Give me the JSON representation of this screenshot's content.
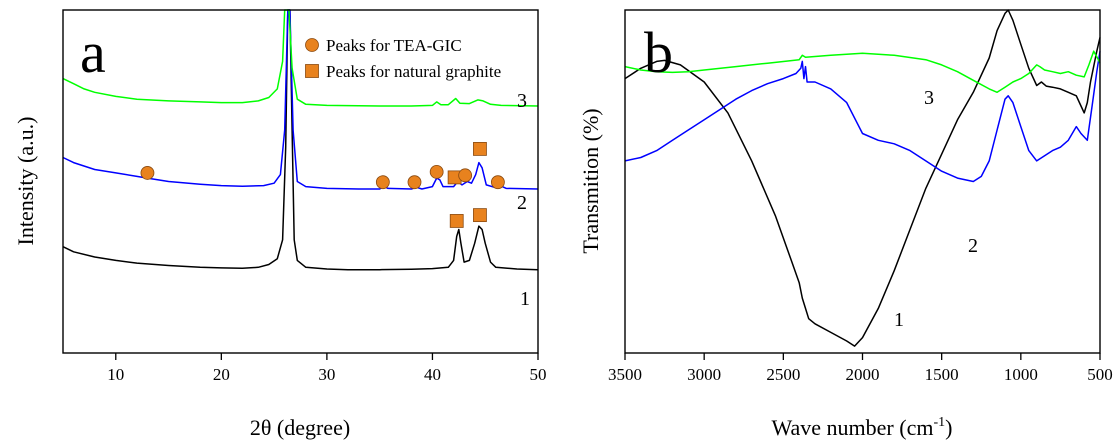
{
  "chart_data": [
    {
      "panel_letter": "a",
      "type": "line",
      "xlabel": "2θ (degree)",
      "ylabel": "Intensity (a.u.)",
      "xlim": [
        5,
        50
      ],
      "x_ticks": [
        10,
        20,
        30,
        40,
        50
      ],
      "y_ticks_shown": false,
      "grid": false,
      "legend": {
        "placement": "top-right",
        "entries": [
          {
            "marker": "circle",
            "label": "Peaks for TEA-GIC",
            "color": "#E8821E"
          },
          {
            "marker": "square",
            "label": "Peaks for natural graphite",
            "color": "#E8821E"
          }
        ]
      },
      "series": [
        {
          "label_on_chart": "1",
          "color": "#000000",
          "points": [
            [
              5,
              0.31
            ],
            [
              6,
              0.295
            ],
            [
              8,
              0.28
            ],
            [
              10,
              0.27
            ],
            [
              12,
              0.262
            ],
            [
              15,
              0.255
            ],
            [
              18,
              0.25
            ],
            [
              20,
              0.248
            ],
            [
              22,
              0.247
            ],
            [
              23.5,
              0.25
            ],
            [
              24.5,
              0.258
            ],
            [
              25.3,
              0.275
            ],
            [
              25.8,
              0.33
            ],
            [
              26.1,
              0.6
            ],
            [
              26.3,
              1.05
            ],
            [
              26.5,
              1.05
            ],
            [
              26.7,
              0.65
            ],
            [
              26.9,
              0.33
            ],
            [
              27.2,
              0.27
            ],
            [
              28,
              0.25
            ],
            [
              30,
              0.245
            ],
            [
              32,
              0.243
            ],
            [
              35,
              0.243
            ],
            [
              38,
              0.244
            ],
            [
              40,
              0.246
            ],
            [
              41.5,
              0.25
            ],
            [
              42.0,
              0.27
            ],
            [
              42.3,
              0.34
            ],
            [
              42.5,
              0.36
            ],
            [
              42.7,
              0.32
            ],
            [
              43.0,
              0.265
            ],
            [
              43.5,
              0.27
            ],
            [
              44.0,
              0.32
            ],
            [
              44.4,
              0.37
            ],
            [
              44.7,
              0.36
            ],
            [
              45.0,
              0.32
            ],
            [
              45.5,
              0.265
            ],
            [
              46,
              0.25
            ],
            [
              48,
              0.245
            ],
            [
              50,
              0.243
            ]
          ]
        },
        {
          "label_on_chart": "2",
          "color": "#0000FF",
          "points": [
            [
              5,
              0.57
            ],
            [
              6,
              0.555
            ],
            [
              8,
              0.535
            ],
            [
              10,
              0.525
            ],
            [
              12,
              0.515
            ],
            [
              13,
              0.51
            ],
            [
              15,
              0.5
            ],
            [
              18,
              0.492
            ],
            [
              20,
              0.488
            ],
            [
              22,
              0.486
            ],
            [
              24,
              0.488
            ],
            [
              25,
              0.495
            ],
            [
              25.6,
              0.52
            ],
            [
              26.0,
              0.65
            ],
            [
              26.3,
              1.05
            ],
            [
              26.5,
              1.05
            ],
            [
              26.8,
              0.65
            ],
            [
              27.2,
              0.5
            ],
            [
              28,
              0.485
            ],
            [
              30,
              0.48
            ],
            [
              33,
              0.478
            ],
            [
              35,
              0.478
            ],
            [
              35.4,
              0.485
            ],
            [
              35.8,
              0.48
            ],
            [
              38,
              0.478
            ],
            [
              38.5,
              0.483
            ],
            [
              39,
              0.478
            ],
            [
              40,
              0.485
            ],
            [
              40.4,
              0.51
            ],
            [
              40.7,
              0.505
            ],
            [
              41,
              0.485
            ],
            [
              42,
              0.485
            ],
            [
              42.4,
              0.5
            ],
            [
              42.8,
              0.49
            ],
            [
              43.3,
              0.5
            ],
            [
              43.7,
              0.495
            ],
            [
              44.1,
              0.52
            ],
            [
              44.4,
              0.555
            ],
            [
              44.7,
              0.54
            ],
            [
              45.1,
              0.49
            ],
            [
              46,
              0.482
            ],
            [
              46.4,
              0.488
            ],
            [
              47,
              0.48
            ],
            [
              50,
              0.478
            ]
          ]
        },
        {
          "label_on_chart": "3",
          "color": "#00FF00",
          "points": [
            [
              5,
              0.8
            ],
            [
              6,
              0.785
            ],
            [
              7,
              0.77
            ],
            [
              8,
              0.76
            ],
            [
              10,
              0.748
            ],
            [
              12,
              0.74
            ],
            [
              15,
              0.735
            ],
            [
              18,
              0.732
            ],
            [
              20,
              0.73
            ],
            [
              22,
              0.73
            ],
            [
              23.5,
              0.735
            ],
            [
              24.5,
              0.745
            ],
            [
              25.3,
              0.77
            ],
            [
              25.8,
              0.85
            ],
            [
              26.0,
              1.05
            ],
            [
              26.4,
              1.05
            ],
            [
              26.7,
              0.83
            ],
            [
              27.2,
              0.74
            ],
            [
              28,
              0.725
            ],
            [
              30,
              0.722
            ],
            [
              35,
              0.72
            ],
            [
              38,
              0.72
            ],
            [
              40,
              0.722
            ],
            [
              40.4,
              0.732
            ],
            [
              40.8,
              0.724
            ],
            [
              41.5,
              0.724
            ],
            [
              42.2,
              0.742
            ],
            [
              42.6,
              0.728
            ],
            [
              43.5,
              0.727
            ],
            [
              44.3,
              0.738
            ],
            [
              44.8,
              0.735
            ],
            [
              45.5,
              0.725
            ],
            [
              46.5,
              0.722
            ],
            [
              50,
              0.72
            ]
          ]
        }
      ],
      "markers": [
        {
          "shape": "circle",
          "x": 13,
          "y": 0.525
        },
        {
          "shape": "circle",
          "x": 35.3,
          "y": 0.498
        },
        {
          "shape": "circle",
          "x": 38.3,
          "y": 0.498
        },
        {
          "shape": "circle",
          "x": 40.4,
          "y": 0.528
        },
        {
          "shape": "square",
          "x": 42.1,
          "y": 0.512
        },
        {
          "shape": "circle",
          "x": 43.1,
          "y": 0.518
        },
        {
          "shape": "square",
          "x": 44.5,
          "y": 0.595
        },
        {
          "shape": "circle",
          "x": 46.2,
          "y": 0.498
        },
        {
          "shape": "square",
          "x": 42.3,
          "y": 0.385
        },
        {
          "shape": "square",
          "x": 44.5,
          "y": 0.402
        }
      ]
    },
    {
      "panel_letter": "b",
      "type": "line",
      "xlabel": "Wave number (cm",
      "xlabel_superscript": "-1",
      "xlabel_close": ")",
      "ylabel": "Transmition (%)",
      "xlim": [
        3500,
        500
      ],
      "x_reversed": true,
      "x_ticks": [
        3500,
        3000,
        2500,
        2000,
        1500,
        1000,
        500
      ],
      "y_ticks_shown": false,
      "grid": false,
      "series": [
        {
          "label_on_chart": "1",
          "color": "#000000",
          "points": [
            [
              3500,
              0.8
            ],
            [
              3400,
              0.83
            ],
            [
              3300,
              0.85
            ],
            [
              3250,
              0.853
            ],
            [
              3150,
              0.84
            ],
            [
              3000,
              0.79
            ],
            [
              2850,
              0.7
            ],
            [
              2700,
              0.56
            ],
            [
              2550,
              0.4
            ],
            [
              2450,
              0.27
            ],
            [
              2400,
              0.205
            ],
            [
              2380,
              0.16
            ],
            [
              2360,
              0.13
            ],
            [
              2340,
              0.1
            ],
            [
              2300,
              0.085
            ],
            [
              2200,
              0.06
            ],
            [
              2100,
              0.035
            ],
            [
              2050,
              0.02
            ],
            [
              2000,
              0.045
            ],
            [
              1900,
              0.13
            ],
            [
              1800,
              0.24
            ],
            [
              1700,
              0.36
            ],
            [
              1600,
              0.48
            ],
            [
              1500,
              0.58
            ],
            [
              1400,
              0.68
            ],
            [
              1300,
              0.76
            ],
            [
              1200,
              0.86
            ],
            [
              1150,
              0.94
            ],
            [
              1100,
              0.99
            ],
            [
              1080,
              1.0
            ],
            [
              1050,
              0.97
            ],
            [
              1000,
              0.9
            ],
            [
              950,
              0.83
            ],
            [
              900,
              0.78
            ],
            [
              870,
              0.79
            ],
            [
              840,
              0.778
            ],
            [
              800,
              0.775
            ],
            [
              750,
              0.77
            ],
            [
              700,
              0.76
            ],
            [
              650,
              0.75
            ],
            [
              620,
              0.72
            ],
            [
              600,
              0.7
            ],
            [
              580,
              0.73
            ],
            [
              560,
              0.79
            ],
            [
              520,
              0.88
            ],
            [
              500,
              0.92
            ]
          ]
        },
        {
          "label_on_chart": "2",
          "color": "#0000FF",
          "points": [
            [
              3500,
              0.56
            ],
            [
              3400,
              0.57
            ],
            [
              3300,
              0.59
            ],
            [
              3200,
              0.62
            ],
            [
              3100,
              0.65
            ],
            [
              3000,
              0.68
            ],
            [
              2900,
              0.71
            ],
            [
              2800,
              0.74
            ],
            [
              2700,
              0.765
            ],
            [
              2600,
              0.785
            ],
            [
              2500,
              0.8
            ],
            [
              2420,
              0.815
            ],
            [
              2390,
              0.83
            ],
            [
              2380,
              0.85
            ],
            [
              2370,
              0.8
            ],
            [
              2360,
              0.835
            ],
            [
              2350,
              0.79
            ],
            [
              2300,
              0.79
            ],
            [
              2200,
              0.77
            ],
            [
              2100,
              0.73
            ],
            [
              2000,
              0.64
            ],
            [
              1900,
              0.62
            ],
            [
              1800,
              0.61
            ],
            [
              1700,
              0.59
            ],
            [
              1600,
              0.56
            ],
            [
              1500,
              0.53
            ],
            [
              1400,
              0.51
            ],
            [
              1300,
              0.5
            ],
            [
              1250,
              0.515
            ],
            [
              1200,
              0.56
            ],
            [
              1150,
              0.65
            ],
            [
              1100,
              0.74
            ],
            [
              1080,
              0.75
            ],
            [
              1050,
              0.73
            ],
            [
              1000,
              0.66
            ],
            [
              950,
              0.59
            ],
            [
              900,
              0.56
            ],
            [
              850,
              0.575
            ],
            [
              800,
              0.59
            ],
            [
              750,
              0.6
            ],
            [
              700,
              0.62
            ],
            [
              650,
              0.66
            ],
            [
              620,
              0.64
            ],
            [
              580,
              0.62
            ],
            [
              550,
              0.72
            ],
            [
              520,
              0.82
            ],
            [
              500,
              0.88
            ]
          ]
        },
        {
          "label_on_chart": "3",
          "color": "#00FF00",
          "points": [
            [
              3500,
              0.835
            ],
            [
              3400,
              0.825
            ],
            [
              3300,
              0.82
            ],
            [
              3200,
              0.818
            ],
            [
              3100,
              0.82
            ],
            [
              3000,
              0.825
            ],
            [
              2800,
              0.835
            ],
            [
              2600,
              0.845
            ],
            [
              2400,
              0.855
            ],
            [
              2380,
              0.868
            ],
            [
              2360,
              0.862
            ],
            [
              2200,
              0.868
            ],
            [
              2000,
              0.874
            ],
            [
              1800,
              0.868
            ],
            [
              1600,
              0.855
            ],
            [
              1500,
              0.84
            ],
            [
              1400,
              0.82
            ],
            [
              1300,
              0.795
            ],
            [
              1200,
              0.77
            ],
            [
              1150,
              0.76
            ],
            [
              1100,
              0.775
            ],
            [
              1050,
              0.79
            ],
            [
              1000,
              0.8
            ],
            [
              950,
              0.815
            ],
            [
              900,
              0.84
            ],
            [
              880,
              0.835
            ],
            [
              850,
              0.825
            ],
            [
              800,
              0.82
            ],
            [
              750,
              0.815
            ],
            [
              700,
              0.82
            ],
            [
              650,
              0.81
            ],
            [
              600,
              0.805
            ],
            [
              570,
              0.84
            ],
            [
              540,
              0.88
            ],
            [
              510,
              0.855
            ],
            [
              500,
              0.845
            ]
          ]
        }
      ]
    }
  ]
}
